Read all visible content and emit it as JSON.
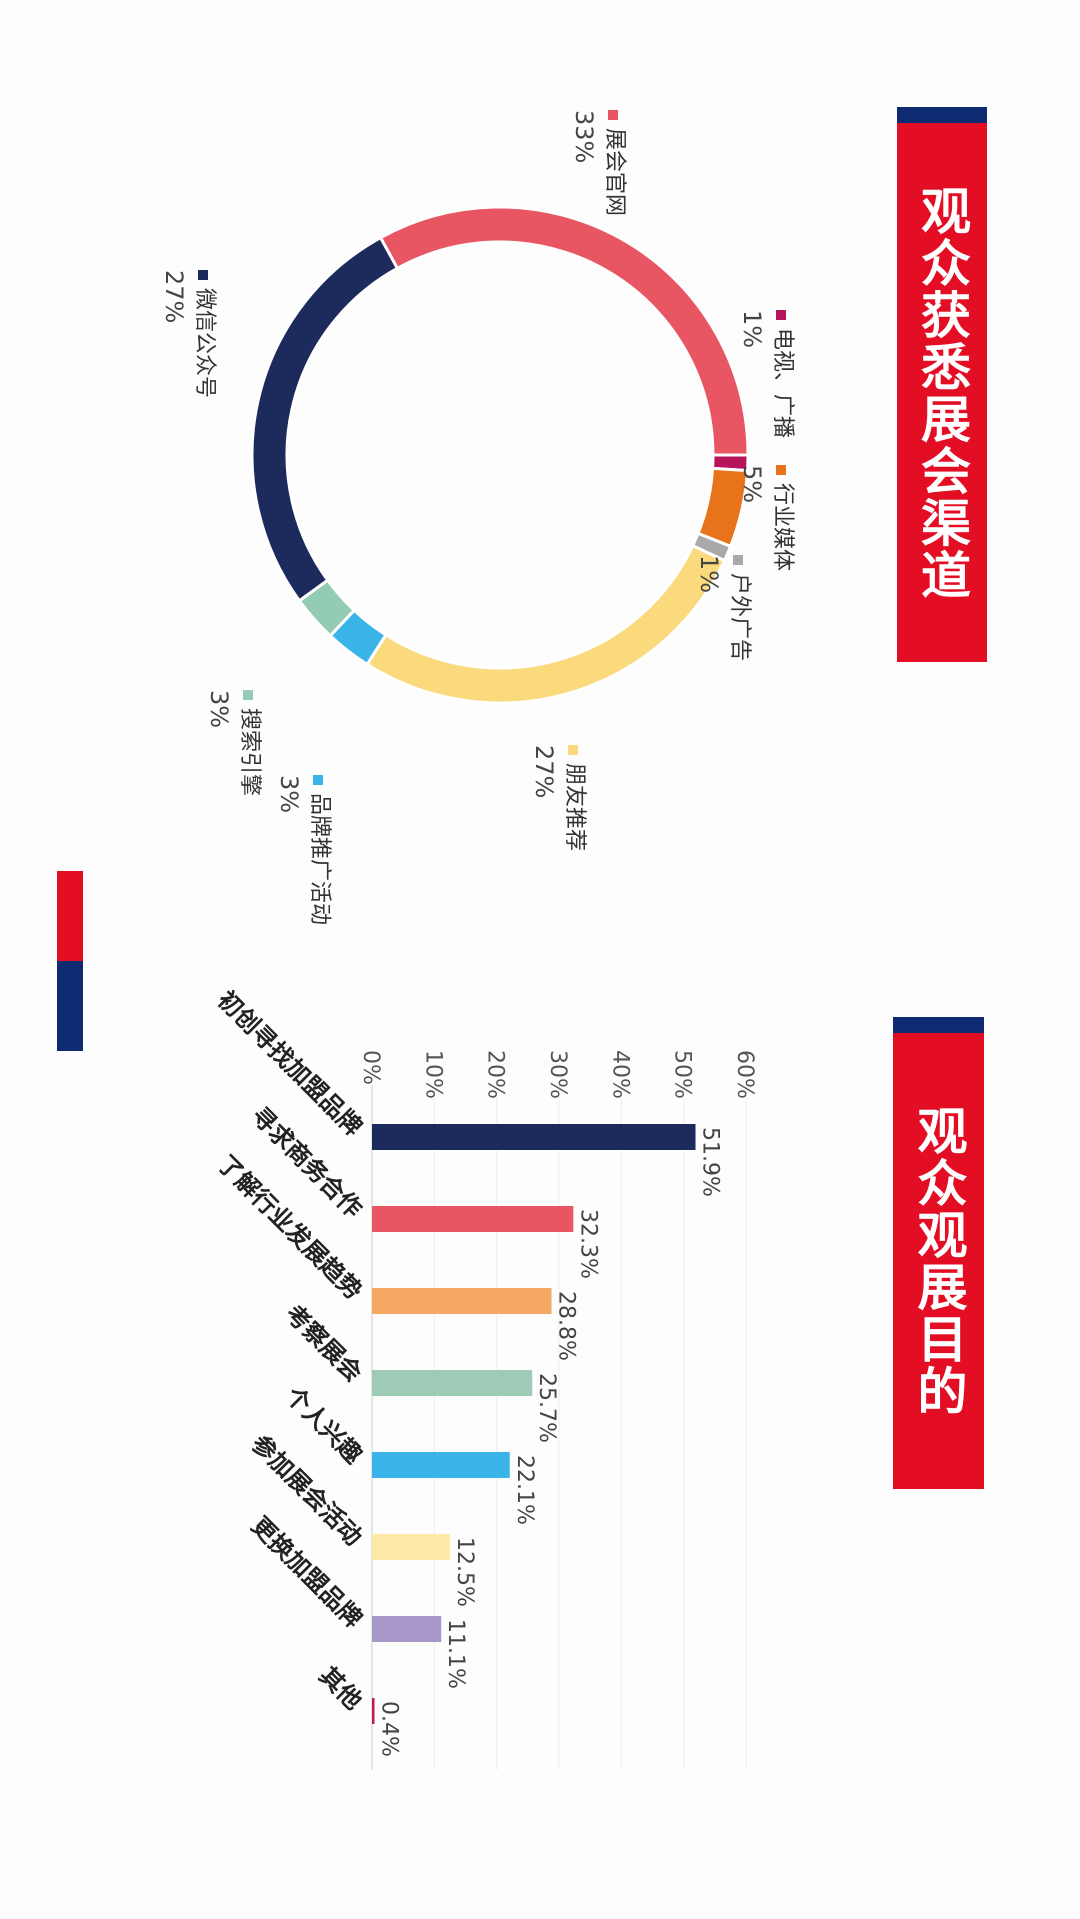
{
  "titles": {
    "channels": "观众获悉展会渠道",
    "purpose": "观众观展目的"
  },
  "chart_data": [
    {
      "type": "pie",
      "title": "观众获悉展会渠道",
      "slices": [
        {
          "label": "展会官网",
          "value": 33,
          "display": "33%",
          "color": "#e85563"
        },
        {
          "label": "电视、广播",
          "value": 1,
          "display": "1%",
          "color": "#b6145b"
        },
        {
          "label": "行业媒体",
          "value": 5,
          "display": "5%",
          "color": "#e8731a"
        },
        {
          "label": "户外广告",
          "value": 1,
          "display": "1%",
          "color": "#a9a9a9"
        },
        {
          "label": "朋友推荐",
          "value": 27,
          "display": "27%",
          "color": "#fbd97d"
        },
        {
          "label": "品牌推广活动",
          "value": 3,
          "display": "3%",
          "color": "#3bb4ea"
        },
        {
          "label": "搜索引擎",
          "value": 3,
          "display": "3%",
          "color": "#94cbb4"
        },
        {
          "label": "微信公众号",
          "value": 27,
          "display": "27%",
          "color": "#1d2b5c"
        }
      ]
    },
    {
      "type": "bar",
      "title": "观众观展目的",
      "categories": [
        "初创寻找加盟品牌",
        "寻求商务合作",
        "了解行业发展趋势",
        "考察展会",
        "个人兴趣",
        "参加展会活动",
        "更换加盟品牌",
        "其他"
      ],
      "values": [
        51.9,
        32.3,
        28.8,
        25.7,
        22.1,
        12.5,
        11.1,
        0.4
      ],
      "value_labels": [
        "51.9%",
        "32.3%",
        "28.8%",
        "25.7%",
        "22.1%",
        "12.5%",
        "11.1%",
        "0.4%"
      ],
      "colors": [
        "#1d2b5c",
        "#e85563",
        "#f5a862",
        "#9dcbb6",
        "#3bb4ea",
        "#fdeaa8",
        "#a797c8",
        "#c2185b"
      ],
      "ylim": [
        0,
        60
      ],
      "yticks": [
        "0%",
        "10%",
        "20%",
        "30%",
        "40%",
        "50%",
        "60%"
      ],
      "grid": true
    }
  ]
}
